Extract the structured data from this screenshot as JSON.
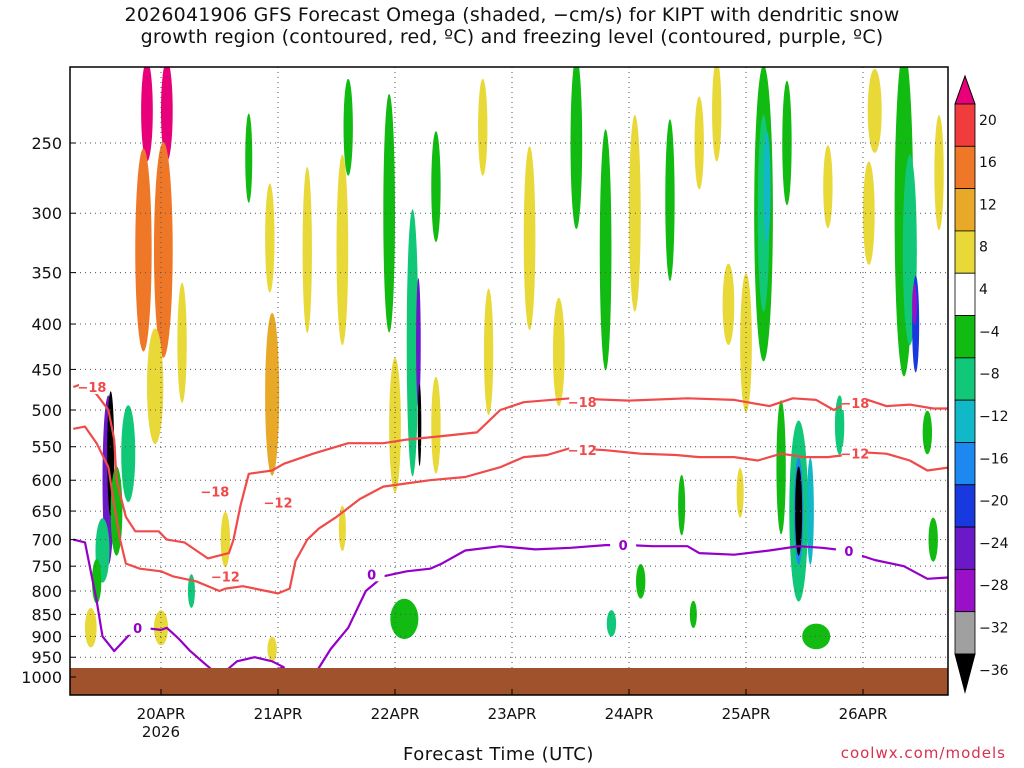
{
  "page": {
    "title_line1": "2026041906 GFS Forecast Omega (shaded, −cm/s) for KIPT with dendritic snow",
    "title_line2": "growth region (contoured, red, ºC) and freezing level (contoured, purple, ºC)",
    "credit": "coolwx.com/models"
  },
  "colors": {
    "dgz_contour": "#f04a4a",
    "freezing_contour": "#9400c8",
    "ground": "#a0522d",
    "grid": "#555555"
  },
  "chart_data": {
    "type": "heatmap",
    "xlabel": "Forecast Time (UTC)",
    "ylabel": "",
    "x_ticks": [
      {
        "day": 1,
        "label": "20APR",
        "sublabel": "2026"
      },
      {
        "day": 2,
        "label": "21APR"
      },
      {
        "day": 3,
        "label": "22APR"
      },
      {
        "day": 4,
        "label": "23APR"
      },
      {
        "day": 5,
        "label": "24APR"
      },
      {
        "day": 6,
        "label": "25APR"
      },
      {
        "day": 7,
        "label": "26APR"
      }
    ],
    "xlim_days": [
      0.25,
      7.75
    ],
    "y_ticks": [
      250,
      300,
      350,
      400,
      450,
      500,
      550,
      600,
      650,
      700,
      750,
      800,
      850,
      900,
      950,
      1000
    ],
    "ylim_hpa": [
      200,
      1000
    ],
    "y_scale": "log-pressure",
    "colorbar": {
      "levels": [
        -36,
        -32,
        -28,
        -24,
        -20,
        -16,
        -12,
        -8,
        -4,
        4,
        8,
        12,
        16,
        20
      ],
      "labels": [
        "20",
        "16",
        "12",
        "8",
        "4",
        "−4",
        "−8",
        "−12",
        "−16",
        "−20",
        "−24",
        "−28",
        "−32",
        "−36"
      ],
      "colors": [
        "#e8007a",
        "#f03c3c",
        "#ef7828",
        "#e8a828",
        "#e8d838",
        "#ffffff",
        "#11bb11",
        "#10c878",
        "#10b8c8",
        "#1c88f0",
        "#1838e0",
        "#6a18c8",
        "#9a10c8",
        "#a0a0a0",
        "#000000"
      ]
    },
    "omega_blobs": [
      {
        "t": 0.55,
        "p": 600,
        "dt": 0.05,
        "dp": 260,
        "v": -28
      },
      {
        "t": 0.57,
        "p": 560,
        "dt": 0.03,
        "dp": 180,
        "v": -36
      },
      {
        "t": 0.5,
        "p": 720,
        "dt": 0.06,
        "dp": 120,
        "v": -12
      },
      {
        "t": 0.45,
        "p": 780,
        "dt": 0.04,
        "dp": 90,
        "v": -8
      },
      {
        "t": 0.62,
        "p": 650,
        "dt": 0.05,
        "dp": 150,
        "v": -8
      },
      {
        "t": 0.72,
        "p": 560,
        "dt": 0.06,
        "dp": 140,
        "v": -12
      },
      {
        "t": 0.4,
        "p": 880,
        "dt": 0.05,
        "dp": 90,
        "v": 4
      },
      {
        "t": 0.88,
        "p": 230,
        "dt": 0.05,
        "dp": 60,
        "v": 20
      },
      {
        "t": 0.85,
        "p": 330,
        "dt": 0.07,
        "dp": 170,
        "v": 12
      },
      {
        "t": 1.05,
        "p": 230,
        "dt": 0.05,
        "dp": 60,
        "v": 20
      },
      {
        "t": 1.02,
        "p": 330,
        "dt": 0.08,
        "dp": 180,
        "v": 12
      },
      {
        "t": 0.95,
        "p": 470,
        "dt": 0.07,
        "dp": 140,
        "v": 4
      },
      {
        "t": 1.0,
        "p": 880,
        "dt": 0.06,
        "dp": 80,
        "v": 4
      },
      {
        "t": 1.26,
        "p": 800,
        "dt": 0.03,
        "dp": 70,
        "v": -12
      },
      {
        "t": 1.18,
        "p": 420,
        "dt": 0.04,
        "dp": 130,
        "v": 4
      },
      {
        "t": 1.55,
        "p": 700,
        "dt": 0.04,
        "dp": 100,
        "v": 4
      },
      {
        "t": 1.75,
        "p": 260,
        "dt": 0.03,
        "dp": 60,
        "v": -8
      },
      {
        "t": 1.95,
        "p": 480,
        "dt": 0.06,
        "dp": 200,
        "v": 8
      },
      {
        "t": 1.93,
        "p": 320,
        "dt": 0.04,
        "dp": 90,
        "v": 4
      },
      {
        "t": 1.95,
        "p": 930,
        "dt": 0.04,
        "dp": 60,
        "v": 4
      },
      {
        "t": 2.25,
        "p": 330,
        "dt": 0.04,
        "dp": 140,
        "v": 4
      },
      {
        "t": 2.55,
        "p": 330,
        "dt": 0.05,
        "dp": 160,
        "v": 4
      },
      {
        "t": 2.6,
        "p": 240,
        "dt": 0.04,
        "dp": 60,
        "v": -8
      },
      {
        "t": 2.55,
        "p": 680,
        "dt": 0.03,
        "dp": 80,
        "v": 4
      },
      {
        "t": 2.95,
        "p": 300,
        "dt": 0.05,
        "dp": 180,
        "v": -8
      },
      {
        "t": 3.0,
        "p": 520,
        "dt": 0.05,
        "dp": 180,
        "v": 4
      },
      {
        "t": 3.15,
        "p": 420,
        "dt": 0.05,
        "dp": 280,
        "v": -12
      },
      {
        "t": 3.2,
        "p": 420,
        "dt": 0.02,
        "dp": 140,
        "v": -28
      },
      {
        "t": 3.21,
        "p": 520,
        "dt": 0.015,
        "dp": 110,
        "v": -36
      },
      {
        "t": 3.08,
        "p": 860,
        "dt": 0.12,
        "dp": 90,
        "v": -8
      },
      {
        "t": 3.35,
        "p": 280,
        "dt": 0.04,
        "dp": 80,
        "v": -8
      },
      {
        "t": 3.35,
        "p": 520,
        "dt": 0.04,
        "dp": 130,
        "v": 4
      },
      {
        "t": 3.75,
        "p": 240,
        "dt": 0.04,
        "dp": 60,
        "v": 4
      },
      {
        "t": 3.8,
        "p": 430,
        "dt": 0.04,
        "dp": 140,
        "v": 4
      },
      {
        "t": 4.15,
        "p": 320,
        "dt": 0.05,
        "dp": 150,
        "v": 4
      },
      {
        "t": 4.4,
        "p": 430,
        "dt": 0.05,
        "dp": 120,
        "v": 4
      },
      {
        "t": 4.55,
        "p": 250,
        "dt": 0.05,
        "dp": 110,
        "v": -8
      },
      {
        "t": 4.8,
        "p": 330,
        "dt": 0.05,
        "dp": 200,
        "v": -8
      },
      {
        "t": 4.85,
        "p": 870,
        "dt": 0.04,
        "dp": 60,
        "v": -12
      },
      {
        "t": 5.05,
        "p": 300,
        "dt": 0.05,
        "dp": 150,
        "v": 4
      },
      {
        "t": 5.35,
        "p": 290,
        "dt": 0.04,
        "dp": 120,
        "v": -8
      },
      {
        "t": 5.1,
        "p": 780,
        "dt": 0.04,
        "dp": 70,
        "v": -8
      },
      {
        "t": 5.45,
        "p": 640,
        "dt": 0.03,
        "dp": 100,
        "v": -8
      },
      {
        "t": 5.55,
        "p": 850,
        "dt": 0.03,
        "dp": 60,
        "v": -8
      },
      {
        "t": 5.6,
        "p": 250,
        "dt": 0.04,
        "dp": 60,
        "v": 4
      },
      {
        "t": 5.75,
        "p": 230,
        "dt": 0.04,
        "dp": 60,
        "v": 4
      },
      {
        "t": 5.85,
        "p": 380,
        "dt": 0.05,
        "dp": 80,
        "v": 4
      },
      {
        "t": 5.95,
        "p": 620,
        "dt": 0.03,
        "dp": 80,
        "v": 4
      },
      {
        "t": 6.0,
        "p": 420,
        "dt": 0.05,
        "dp": 150,
        "v": 4
      },
      {
        "t": 6.15,
        "p": 300,
        "dt": 0.08,
        "dp": 220,
        "v": -8
      },
      {
        "t": 6.15,
        "p": 300,
        "dt": 0.05,
        "dp": 150,
        "v": -12
      },
      {
        "t": 6.18,
        "p": 280,
        "dt": 0.03,
        "dp": 80,
        "v": -16
      },
      {
        "t": 6.35,
        "p": 250,
        "dt": 0.04,
        "dp": 80,
        "v": -8
      },
      {
        "t": 6.3,
        "p": 580,
        "dt": 0.04,
        "dp": 200,
        "v": -8
      },
      {
        "t": 6.45,
        "p": 650,
        "dt": 0.08,
        "dp": 300,
        "v": -12
      },
      {
        "t": 6.45,
        "p": 650,
        "dt": 0.04,
        "dp": 180,
        "v": -20
      },
      {
        "t": 6.45,
        "p": 650,
        "dt": 0.03,
        "dp": 150,
        "v": -36
      },
      {
        "t": 6.55,
        "p": 650,
        "dt": 0.03,
        "dp": 180,
        "v": -16
      },
      {
        "t": 6.6,
        "p": 900,
        "dt": 0.12,
        "dp": 60,
        "v": -8
      },
      {
        "t": 6.7,
        "p": 280,
        "dt": 0.04,
        "dp": 60,
        "v": 4
      },
      {
        "t": 6.8,
        "p": 520,
        "dt": 0.04,
        "dp": 80,
        "v": -12
      },
      {
        "t": 7.1,
        "p": 230,
        "dt": 0.06,
        "dp": 50,
        "v": 4
      },
      {
        "t": 7.05,
        "p": 300,
        "dt": 0.05,
        "dp": 80,
        "v": 4
      },
      {
        "t": 7.35,
        "p": 300,
        "dt": 0.08,
        "dp": 240,
        "v": -8
      },
      {
        "t": 7.4,
        "p": 330,
        "dt": 0.06,
        "dp": 160,
        "v": -12
      },
      {
        "t": 7.45,
        "p": 400,
        "dt": 0.03,
        "dp": 100,
        "v": -24
      },
      {
        "t": 7.44,
        "p": 380,
        "dt": 0.02,
        "dp": 40,
        "v": -32
      },
      {
        "t": 7.65,
        "p": 270,
        "dt": 0.04,
        "dp": 80,
        "v": 4
      },
      {
        "t": 7.6,
        "p": 700,
        "dt": 0.04,
        "dp": 80,
        "v": -8
      },
      {
        "t": 7.55,
        "p": 530,
        "dt": 0.04,
        "dp": 60,
        "v": -8
      }
    ],
    "contours": [
      {
        "name": "-18",
        "color_key": "dgz_contour",
        "label": "−18",
        "label_at": [
          [
            0.41,
            471
          ],
          [
            1.46,
            618
          ],
          [
            4.6,
            490
          ],
          [
            6.93,
            491
          ]
        ],
        "points": [
          [
            0.25,
            471
          ],
          [
            0.35,
            466
          ],
          [
            0.45,
            480
          ],
          [
            0.55,
            500
          ],
          [
            0.6,
            540
          ],
          [
            0.62,
            600
          ],
          [
            0.7,
            660
          ],
          [
            0.78,
            685
          ],
          [
            0.98,
            685
          ],
          [
            1.05,
            700
          ],
          [
            1.2,
            705
          ],
          [
            1.4,
            735
          ],
          [
            1.58,
            725
          ],
          [
            1.62,
            700
          ],
          [
            1.68,
            640
          ],
          [
            1.75,
            590
          ],
          [
            1.95,
            585
          ],
          [
            2.05,
            575
          ],
          [
            2.3,
            560
          ],
          [
            2.6,
            545
          ],
          [
            2.9,
            545
          ],
          [
            3.1,
            540
          ],
          [
            3.4,
            535
          ],
          [
            3.7,
            530
          ],
          [
            3.9,
            500
          ],
          [
            4.1,
            490
          ],
          [
            4.5,
            485
          ],
          [
            5.0,
            488
          ],
          [
            5.5,
            485
          ],
          [
            5.9,
            487
          ],
          [
            6.2,
            495
          ],
          [
            6.4,
            485
          ],
          [
            6.6,
            487
          ],
          [
            6.75,
            500
          ],
          [
            6.85,
            492
          ],
          [
            7.0,
            485
          ],
          [
            7.2,
            495
          ],
          [
            7.4,
            493
          ],
          [
            7.6,
            498
          ],
          [
            7.75,
            498
          ]
        ]
      },
      {
        "name": "-12",
        "color_key": "dgz_contour",
        "label": "−12",
        "label_at": [
          [
            1.55,
            770
          ],
          [
            2.0,
            636
          ],
          [
            4.6,
            555
          ],
          [
            6.93,
            560
          ]
        ],
        "points": [
          [
            0.25,
            525
          ],
          [
            0.35,
            522
          ],
          [
            0.45,
            545
          ],
          [
            0.55,
            580
          ],
          [
            0.6,
            640
          ],
          [
            0.65,
            700
          ],
          [
            0.7,
            745
          ],
          [
            0.82,
            755
          ],
          [
            1.0,
            760
          ],
          [
            1.1,
            770
          ],
          [
            1.3,
            780
          ],
          [
            1.5,
            800
          ],
          [
            1.55,
            795
          ],
          [
            1.7,
            790
          ],
          [
            1.9,
            800
          ],
          [
            2.0,
            805
          ],
          [
            2.1,
            795
          ],
          [
            2.15,
            740
          ],
          [
            2.25,
            700
          ],
          [
            2.35,
            680
          ],
          [
            2.5,
            660
          ],
          [
            2.7,
            630
          ],
          [
            2.9,
            610
          ],
          [
            3.1,
            605
          ],
          [
            3.3,
            600
          ],
          [
            3.6,
            595
          ],
          [
            3.9,
            580
          ],
          [
            4.1,
            565
          ],
          [
            4.3,
            562
          ],
          [
            4.5,
            552
          ],
          [
            4.8,
            555
          ],
          [
            5.1,
            560
          ],
          [
            5.4,
            562
          ],
          [
            5.6,
            565
          ],
          [
            5.9,
            565
          ],
          [
            6.1,
            570
          ],
          [
            6.3,
            560
          ],
          [
            6.5,
            565
          ],
          [
            6.7,
            565
          ],
          [
            6.85,
            562
          ],
          [
            7.0,
            558
          ],
          [
            7.2,
            560
          ],
          [
            7.4,
            570
          ],
          [
            7.55,
            585
          ],
          [
            7.75,
            580
          ]
        ]
      },
      {
        "name": "0",
        "color_key": "freezing_contour",
        "label": "0",
        "label_at": [
          [
            0.8,
            880
          ],
          [
            2.8,
            766
          ],
          [
            4.95,
            710
          ],
          [
            6.88,
            721
          ]
        ],
        "points": [
          [
            0.25,
            700
          ],
          [
            0.35,
            705
          ],
          [
            0.45,
            820
          ],
          [
            0.5,
            900
          ],
          [
            0.6,
            935
          ],
          [
            0.75,
            890
          ],
          [
            0.85,
            880
          ],
          [
            1.0,
            885
          ],
          [
            1.05,
            880
          ],
          [
            1.15,
            905
          ],
          [
            1.25,
            935
          ],
          [
            1.35,
            960
          ],
          [
            1.45,
            985
          ],
          [
            1.55,
            985
          ],
          [
            1.65,
            960
          ],
          [
            1.8,
            950
          ],
          [
            1.95,
            960
          ],
          [
            2.05,
            975
          ],
          [
            1.95,
            985
          ],
          [
            1.8,
            1000
          ]
        ],
        "points2": [
          [
            2.3,
            1000
          ],
          [
            2.45,
            930
          ],
          [
            2.6,
            880
          ],
          [
            2.75,
            800
          ],
          [
            2.9,
            770
          ],
          [
            3.0,
            765
          ],
          [
            3.1,
            760
          ],
          [
            3.3,
            755
          ],
          [
            3.4,
            745
          ],
          [
            3.6,
            720
          ],
          [
            3.9,
            712
          ],
          [
            4.2,
            718
          ],
          [
            4.5,
            715
          ],
          [
            4.8,
            710
          ],
          [
            5.0,
            710
          ],
          [
            5.2,
            712
          ],
          [
            5.5,
            712
          ],
          [
            5.6,
            725
          ],
          [
            5.9,
            728
          ],
          [
            6.2,
            720
          ],
          [
            6.45,
            712
          ],
          [
            6.65,
            715
          ],
          [
            6.85,
            720
          ],
          [
            7.1,
            738
          ],
          [
            7.35,
            750
          ],
          [
            7.55,
            775
          ],
          [
            7.75,
            772
          ]
        ]
      }
    ]
  }
}
